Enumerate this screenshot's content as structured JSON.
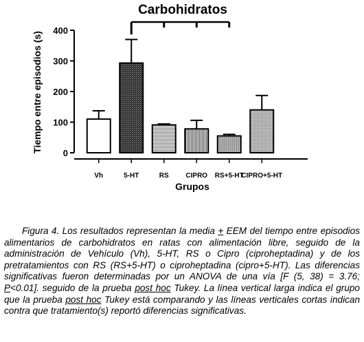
{
  "chart_data": {
    "type": "bar",
    "title": "Carbohidratos",
    "xlabel": "Grupos",
    "ylabel": "Tiempo entre episodios (s)",
    "ylim": [
      0,
      400
    ],
    "yticks": [
      0,
      100,
      200,
      300,
      400
    ],
    "categories": [
      "Vh",
      "5-HT",
      "RS",
      "CIPRO",
      "RS+5-HT",
      "CIPRO+5-HT"
    ],
    "values": [
      110,
      293,
      91,
      78,
      55,
      140
    ],
    "errors": [
      27,
      77,
      3,
      28,
      5,
      47
    ],
    "fills": [
      "white",
      "dark-dots",
      "horizontal-lines",
      "vertical-lines",
      "light-dots",
      "gray-dots"
    ],
    "significance": {
      "reference": "5-HT",
      "compared": [
        "RS",
        "CIPRO",
        "RS+5-HT"
      ]
    }
  },
  "caption": {
    "figure_label": "Figura 4.",
    "line1": " Los resultados representan la media ",
    "pm": "+",
    "line2": " EEM del tiempo entre episodios alimentarios de carbohidratos en ratas con alimentación libre, seguido de la administración de Vehículo (Vh), 5-HT, RS o Cipro (ciproheptadina) y de los pretratamientos con RS (RS+5-HT) o ciproheptadina (cipro+5-HT). Las diferencias significativas fueron determinadas por un ANOVA de una vía [F (5, 38) = 3.76; ",
    "p_letter": "P",
    "line3": "<0.01]. seguido de la prueba ",
    "post_hoc_1": "post hoc",
    "line4": " Tukey. La línea vertical larga indica el grupo que la prueba ",
    "post_hoc_2": "post hoc",
    "line5": " Tukey está comparando y las líneas verticales cortas indican contra que tratamiento(s) reportó diferencias significativas."
  }
}
